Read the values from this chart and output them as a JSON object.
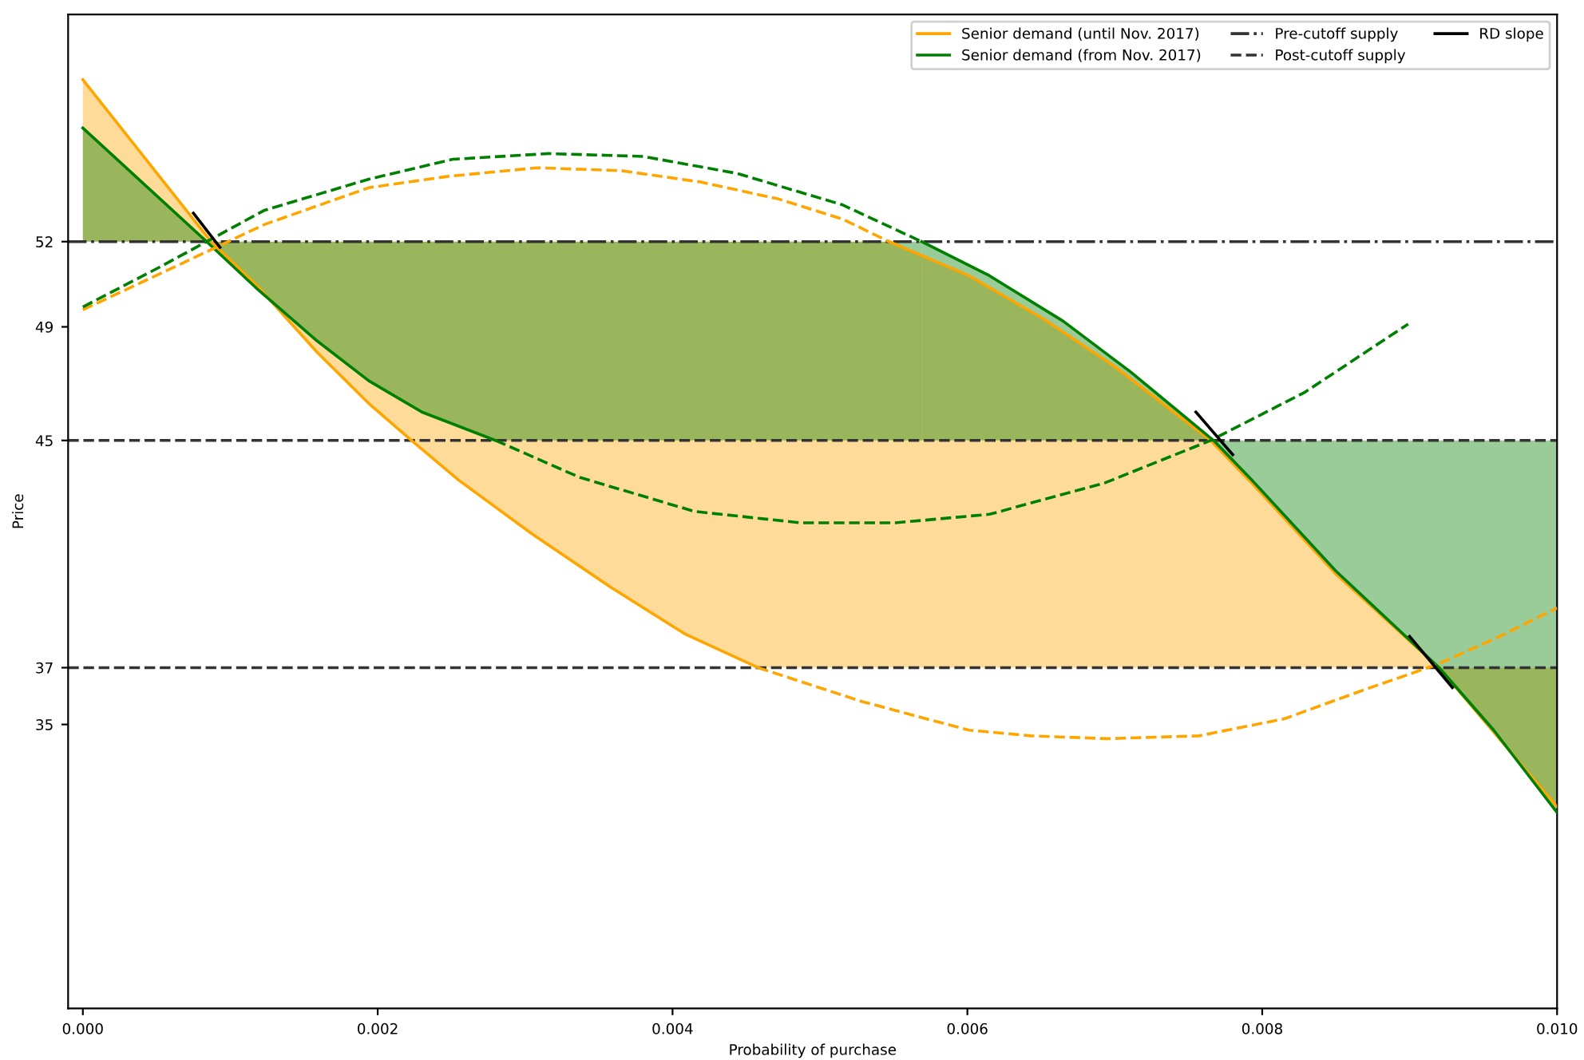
{
  "chart_data": {
    "type": "line",
    "xlabel": "Probability of purchase",
    "ylabel": "Price",
    "xlim": [
      -0.0001,
      0.01
    ],
    "xticks": [
      {
        "value": 0,
        "label": "0.000"
      },
      {
        "value": 0.002,
        "label": "0.002"
      },
      {
        "value": 0.004,
        "label": "0.004"
      },
      {
        "value": 0.006,
        "label": "0.006"
      },
      {
        "value": 0.008,
        "label": "0.008"
      },
      {
        "value": 0.01,
        "label": "0.010"
      }
    ],
    "ylim": [
      25,
      60
    ],
    "yticks": [
      35,
      37,
      45,
      49,
      52
    ],
    "legend": "top right",
    "series": [
      {
        "name": "Senior demand (until Nov. 2017)",
        "color": "#ffa500",
        "line_style": "solid",
        "x": [
          0,
          0.00087,
          0.00119,
          0.00159,
          0.00194,
          0.00223,
          0.00255,
          0.00305,
          0.00359,
          0.00408,
          0.00458,
          0.00547
        ],
        "values": [
          57.7,
          52.0,
          50.4,
          48.1,
          46.3,
          45.0,
          43.6,
          41.7,
          39.8,
          38.2,
          37.0,
          null
        ],
        "lower": [
          52,
          52.0,
          50.4,
          48.1,
          46.3,
          45.0,
          43.6,
          41.7,
          39.8,
          38.2,
          37.0,
          37
        ],
        "upper": [
          57.7,
          52.0,
          52,
          52,
          52,
          52,
          52,
          52,
          52,
          52,
          52,
          52
        ]
      },
      {
        "color": "#ffa500",
        "line_style": "solid",
        "x": [
          0.00547,
          0.00601,
          0.00651,
          0.007,
          0.00765,
          0.00793,
          0.0085,
          0.0092,
          0.01
        ],
        "values": [
          52.0,
          50.8,
          49.3,
          47.6,
          45.0,
          43.5,
          40.3,
          37.0,
          32.1
        ],
        "lower": [
          37,
          37,
          37,
          37,
          37,
          37,
          37,
          37.0,
          32.1
        ],
        "upper": [
          52.0,
          50.8,
          49.3,
          47.6,
          45.0,
          43.5,
          40.3,
          37.0,
          37
        ]
      },
      {
        "name": "Senior demand (from Nov. 2017)",
        "color": "#008000",
        "line_style": "solid",
        "x": [
          0,
          0.00084,
          0.00119,
          0.00159,
          0.00194,
          0.0023,
          0.0028,
          0.00569
        ],
        "values": [
          56.0,
          52.0,
          50.3,
          48.5,
          47.1,
          46.0,
          45.0,
          null
        ],
        "lower": [
          52,
          52.0,
          50.3,
          48.5,
          47.1,
          46.0,
          45.0,
          45
        ],
        "upper": [
          56.0,
          52.0,
          52,
          52,
          52,
          52,
          52,
          52
        ]
      },
      {
        "color": "#008000",
        "line_style": "solid",
        "x": [
          0.00569,
          0.00615,
          0.00665,
          0.00711,
          0.00767,
          0.00793,
          0.0085,
          0.0092,
          0.00957,
          0.01
        ],
        "values": [
          52.0,
          50.8,
          49.2,
          47.4,
          45.0,
          43.6,
          40.4,
          37.0,
          34.8,
          31.9
        ],
        "lower": [
          45,
          45,
          45,
          45,
          45.0,
          43.6,
          40.4,
          37.0,
          34.8,
          31.9
        ],
        "upper": [
          52.0,
          50.8,
          49.2,
          47.4,
          45.0,
          45,
          45,
          45,
          45,
          45
        ]
      },
      {
        "color": "#ffa500",
        "line_style": "dashed",
        "x": [
          0.00458,
          0.00529,
          0.00601,
          0.00643,
          0.00695,
          0.00757,
          0.00815,
          0.00868,
          0.00918,
          0.00957,
          0.01
        ],
        "values": [
          37.0,
          35.8,
          34.8,
          34.6,
          34.5,
          34.6,
          35.2,
          36.2,
          37.1,
          38.0,
          39.1
        ]
      },
      {
        "color": "#ffa500",
        "line_style": "dashed",
        "x": [
          0,
          0.0007,
          0.00123,
          0.00194,
          0.00248,
          0.00308,
          0.00365,
          0.00419,
          0.00472,
          0.00515,
          0.00547
        ],
        "values": [
          49.6,
          51.3,
          52.6,
          53.9,
          54.3,
          54.6,
          54.5,
          54.1,
          53.5,
          52.8,
          52.0
        ]
      },
      {
        "color": "#008000",
        "line_style": "dashed",
        "x": [
          0.0028,
          0.00337,
          0.00415,
          0.00487,
          0.00551,
          0.00615,
          0.00693,
          0.00765,
          0.00829,
          0.00899
        ],
        "values": [
          45.0,
          43.7,
          42.5,
          42.1,
          42.1,
          42.4,
          43.5,
          45.0,
          46.7,
          49.1
        ]
      },
      {
        "color": "#008000",
        "line_style": "dashed",
        "x": [
          0,
          0.00052,
          0.00123,
          0.00194,
          0.00251,
          0.00316,
          0.0038,
          0.00444,
          0.00515,
          0.00569
        ],
        "values": [
          49.7,
          51.1,
          53.1,
          54.2,
          54.9,
          55.1,
          55.0,
          54.4,
          53.3,
          52.0
        ]
      },
      {
        "name": "RD slope",
        "color": "#000000",
        "line_style": "solid",
        "x": [
          0.00075,
          0.00093
        ],
        "values": [
          53.0,
          51.8
        ]
      },
      {
        "color": "#000000",
        "line_style": "solid",
        "x": [
          0.00755,
          0.0078
        ],
        "values": [
          46.0,
          44.5
        ]
      },
      {
        "color": "#000000",
        "line_style": "solid",
        "x": [
          0.009,
          0.00929
        ],
        "values": [
          38.1,
          36.3
        ]
      }
    ],
    "ref_lines": [
      {
        "axis": "y",
        "value": 52,
        "label": "Pre-cutoff supply",
        "color": "#333333",
        "line_style": "dashdot"
      },
      {
        "axis": "y",
        "value": 45,
        "label": "Post-cutoff supply",
        "color": "#333333",
        "line_style": "dashed"
      },
      {
        "axis": "y",
        "value": 37,
        "color": "#333333",
        "line_style": "dashed"
      }
    ]
  }
}
